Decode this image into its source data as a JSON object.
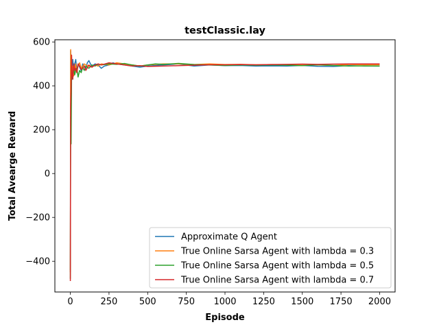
{
  "chart_data": {
    "type": "line",
    "title": "testClassic.lay",
    "xlabel": "Episode",
    "ylabel": "Total Avearge Reward",
    "xlim": [
      -100,
      2100
    ],
    "ylim": [
      -540,
      610
    ],
    "xticks": [
      0,
      250,
      500,
      750,
      1000,
      1250,
      1500,
      1750,
      2000
    ],
    "yticks": [
      -400,
      -200,
      0,
      200,
      400,
      600
    ],
    "xtick_labels": [
      "0",
      "250",
      "500",
      "750",
      "1000",
      "1250",
      "1500",
      "1750",
      "2000"
    ],
    "ytick_labels": [
      "−400",
      "−200",
      "0",
      "200",
      "400",
      "600"
    ],
    "grid": false,
    "legend_position": "lower right",
    "series": [
      {
        "name": "Approximate Q Agent",
        "color": "#1f77b4",
        "points": [
          [
            0,
            -440
          ],
          [
            2,
            560
          ],
          [
            5,
            300
          ],
          [
            8,
            470
          ],
          [
            12,
            430
          ],
          [
            16,
            520
          ],
          [
            22,
            470
          ],
          [
            28,
            500
          ],
          [
            35,
            520
          ],
          [
            42,
            470
          ],
          [
            50,
            500
          ],
          [
            60,
            485
          ],
          [
            70,
            470
          ],
          [
            80,
            500
          ],
          [
            90,
            490
          ],
          [
            100,
            480
          ],
          [
            110,
            505
          ],
          [
            120,
            515
          ],
          [
            130,
            500
          ],
          [
            140,
            490
          ],
          [
            160,
            500
          ],
          [
            180,
            495
          ],
          [
            200,
            480
          ],
          [
            220,
            490
          ],
          [
            250,
            495
          ],
          [
            275,
            505
          ],
          [
            300,
            500
          ],
          [
            350,
            495
          ],
          [
            400,
            490
          ],
          [
            450,
            485
          ],
          [
            500,
            490
          ],
          [
            600,
            495
          ],
          [
            700,
            500
          ],
          [
            800,
            490
          ],
          [
            900,
            495
          ],
          [
            1000,
            492
          ],
          [
            1100,
            493
          ],
          [
            1200,
            490
          ],
          [
            1300,
            491
          ],
          [
            1400,
            490
          ],
          [
            1500,
            493
          ],
          [
            1600,
            489
          ],
          [
            1700,
            488
          ],
          [
            1800,
            492
          ],
          [
            1900,
            490
          ],
          [
            2000,
            490
          ]
        ]
      },
      {
        "name": "True Online Sarsa Agent with lambda = 0.3",
        "color": "#ff7f0e",
        "points": [
          [
            0,
            -450
          ],
          [
            2,
            565
          ],
          [
            5,
            330
          ],
          [
            8,
            520
          ],
          [
            12,
            460
          ],
          [
            16,
            490
          ],
          [
            22,
            445
          ],
          [
            28,
            470
          ],
          [
            35,
            500
          ],
          [
            42,
            460
          ],
          [
            50,
            490
          ],
          [
            60,
            505
          ],
          [
            70,
            480
          ],
          [
            80,
            490
          ],
          [
            90,
            500
          ],
          [
            100,
            495
          ],
          [
            120,
            490
          ],
          [
            140,
            485
          ],
          [
            160,
            495
          ],
          [
            180,
            490
          ],
          [
            200,
            500
          ],
          [
            250,
            495
          ],
          [
            300,
            505
          ],
          [
            350,
            500
          ],
          [
            400,
            495
          ],
          [
            450,
            490
          ],
          [
            500,
            495
          ],
          [
            600,
            500
          ],
          [
            700,
            500
          ],
          [
            800,
            497
          ],
          [
            900,
            500
          ],
          [
            1000,
            497
          ],
          [
            1100,
            498
          ],
          [
            1200,
            496
          ],
          [
            1300,
            497
          ],
          [
            1400,
            496
          ],
          [
            1500,
            494
          ],
          [
            1600,
            495
          ],
          [
            1700,
            493
          ],
          [
            1800,
            497
          ],
          [
            1900,
            496
          ],
          [
            2000,
            496
          ]
        ]
      },
      {
        "name": "True Online Sarsa Agent with lambda = 0.5",
        "color": "#2ca02c",
        "points": [
          [
            0,
            -480
          ],
          [
            2,
            260
          ],
          [
            5,
            135
          ],
          [
            8,
            440
          ],
          [
            12,
            460
          ],
          [
            16,
            450
          ],
          [
            22,
            480
          ],
          [
            28,
            450
          ],
          [
            35,
            470
          ],
          [
            42,
            480
          ],
          [
            50,
            440
          ],
          [
            60,
            470
          ],
          [
            70,
            460
          ],
          [
            80,
            485
          ],
          [
            90,
            470
          ],
          [
            100,
            490
          ],
          [
            120,
            480
          ],
          [
            140,
            495
          ],
          [
            160,
            490
          ],
          [
            180,
            500
          ],
          [
            200,
            495
          ],
          [
            250,
            500
          ],
          [
            300,
            498
          ],
          [
            350,
            502
          ],
          [
            400,
            495
          ],
          [
            450,
            490
          ],
          [
            500,
            495
          ],
          [
            550,
            500
          ],
          [
            600,
            498
          ],
          [
            700,
            502
          ],
          [
            800,
            497
          ],
          [
            900,
            495
          ],
          [
            1000,
            493
          ],
          [
            1100,
            495
          ],
          [
            1200,
            494
          ],
          [
            1300,
            495
          ],
          [
            1400,
            494
          ],
          [
            1500,
            492
          ],
          [
            1600,
            496
          ],
          [
            1700,
            493
          ],
          [
            1800,
            490
          ],
          [
            1900,
            491
          ],
          [
            2000,
            490
          ]
        ]
      },
      {
        "name": "True Online Sarsa Agent with lambda = 0.7",
        "color": "#d62728",
        "points": [
          [
            0,
            -490
          ],
          [
            2,
            300
          ],
          [
            5,
            380
          ],
          [
            8,
            540
          ],
          [
            12,
            450
          ],
          [
            16,
            430
          ],
          [
            22,
            500
          ],
          [
            28,
            470
          ],
          [
            35,
            480
          ],
          [
            42,
            460
          ],
          [
            50,
            500
          ],
          [
            60,
            490
          ],
          [
            70,
            475
          ],
          [
            80,
            480
          ],
          [
            90,
            490
          ],
          [
            100,
            470
          ],
          [
            120,
            495
          ],
          [
            140,
            485
          ],
          [
            160,
            495
          ],
          [
            180,
            500
          ],
          [
            200,
            495
          ],
          [
            250,
            505
          ],
          [
            300,
            500
          ],
          [
            350,
            495
          ],
          [
            400,
            490
          ],
          [
            450,
            492
          ],
          [
            500,
            488
          ],
          [
            600,
            490
          ],
          [
            700,
            492
          ],
          [
            800,
            494
          ],
          [
            900,
            496
          ],
          [
            1000,
            496
          ],
          [
            1100,
            497
          ],
          [
            1200,
            496
          ],
          [
            1300,
            497
          ],
          [
            1400,
            498
          ],
          [
            1500,
            499
          ],
          [
            1600,
            498
          ],
          [
            1700,
            499
          ],
          [
            1800,
            500
          ],
          [
            1900,
            500
          ],
          [
            2000,
            500
          ]
        ]
      }
    ]
  }
}
